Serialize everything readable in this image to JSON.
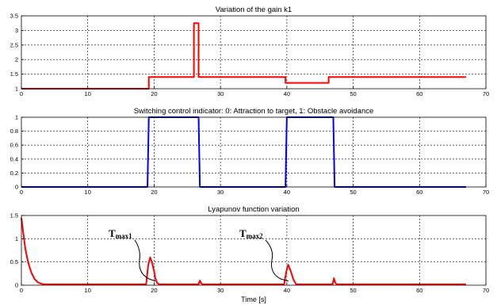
{
  "chart_data": [
    {
      "type": "line",
      "title": "Variation of the gain k1",
      "xlabel": "",
      "ylabel": "",
      "xlim": [
        0,
        70
      ],
      "ylim": [
        1,
        3.5
      ],
      "xticks": [
        "0",
        "10",
        "20",
        "30",
        "40",
        "50",
        "60",
        "70"
      ],
      "yticks": [
        "1",
        "1.5",
        "2",
        "2.5",
        "3",
        "3.5"
      ],
      "grid": true,
      "series": [
        {
          "color": "#ff0000",
          "x": [
            0,
            19.2,
            19.2,
            26.0,
            26.0,
            26.7,
            26.7,
            39.8,
            39.8,
            46.3,
            46.3,
            67
          ],
          "y": [
            1.0,
            1.0,
            1.4,
            1.4,
            3.25,
            3.25,
            1.4,
            1.4,
            1.2,
            1.2,
            1.4,
            1.4
          ]
        }
      ]
    },
    {
      "type": "line",
      "title": "Switching control indicator: 0: Attraction to target, 1: Obstacle avoidance",
      "xlabel": "",
      "ylabel": "",
      "xlim": [
        0,
        70
      ],
      "ylim": [
        0,
        1
      ],
      "xticks": [
        "0",
        "10",
        "20",
        "30",
        "40",
        "50",
        "60",
        "70"
      ],
      "yticks": [
        "0",
        "0.2",
        "0.4",
        "0.6",
        "0.8",
        "1"
      ],
      "grid": true,
      "series": [
        {
          "color": "#0000ff",
          "x": [
            0,
            19.0,
            19.2,
            26.7,
            26.9,
            39.8,
            40.0,
            47.0,
            47.2,
            67
          ],
          "y": [
            0,
            0,
            1,
            1,
            0,
            0,
            1,
            1,
            0,
            0
          ]
        }
      ]
    },
    {
      "type": "line",
      "title": "Lyapunov function variation",
      "xlabel": "Time [s]",
      "ylabel": "",
      "xlim": [
        0,
        70
      ],
      "ylim": [
        0,
        1.5
      ],
      "xticks": [
        "0",
        "10",
        "20",
        "30",
        "40",
        "50",
        "60",
        "70"
      ],
      "yticks": [
        "0",
        "0.5",
        "1",
        "1.5"
      ],
      "grid": true,
      "annotations": [
        "T",
        "max1",
        "T",
        "max2"
      ],
      "series": [
        {
          "color": "#ff0000",
          "x": [
            0,
            0.3,
            0.6,
            1.0,
            1.5,
            2.0,
            2.5,
            3.0,
            3.5,
            4,
            18.8,
            19.1,
            19.4,
            19.7,
            20.0,
            20.2,
            20.5,
            20.8,
            26.7,
            26.9,
            27.1,
            27.3,
            39.6,
            39.9,
            40.2,
            40.6,
            41.0,
            41.4,
            46.9,
            47.1,
            47.3,
            47.5,
            67
          ],
          "y": [
            1.45,
            1.1,
            0.78,
            0.5,
            0.27,
            0.13,
            0.06,
            0.03,
            0.02,
            0.02,
            0.02,
            0.42,
            0.6,
            0.48,
            0.3,
            0.14,
            0.04,
            0.02,
            0.02,
            0.1,
            0.04,
            0.02,
            0.02,
            0.28,
            0.44,
            0.3,
            0.12,
            0.02,
            0.02,
            0.15,
            0.05,
            0.02,
            0.02
          ]
        }
      ]
    }
  ]
}
